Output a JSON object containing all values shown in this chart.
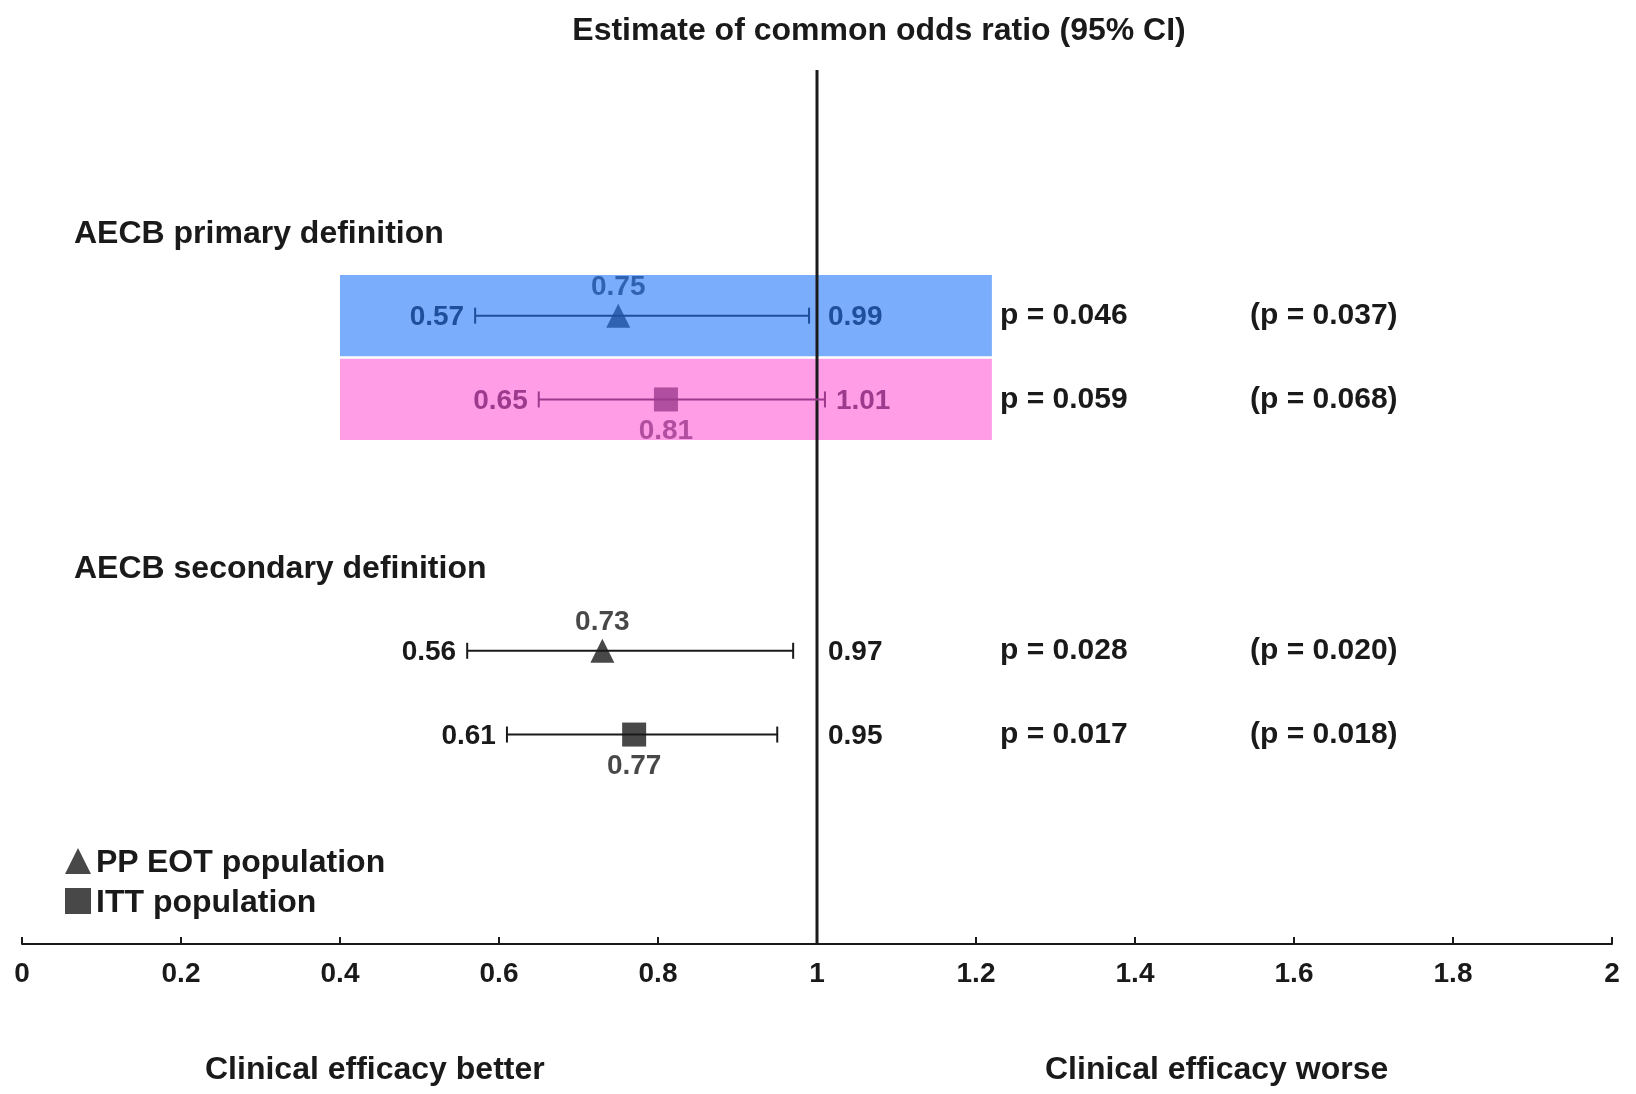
{
  "chart_data": {
    "type": "scatter",
    "orientation": "horizontal",
    "title": "Estimate of common odds ratio (95% CI)",
    "categories": [
      "AECB primary definition",
      null,
      null,
      null,
      "AECB secondary definition",
      null,
      null,
      null,
      null
    ],
    "series": [
      {
        "name": "PP EOT population",
        "marker": "triangle",
        "color": "#1a1a1a",
        "colors": [
          null,
          "#1d4f9c",
          null,
          null,
          null,
          "#1a1a1a",
          null,
          null,
          null
        ],
        "values": [
          null,
          0.75,
          null,
          null,
          null,
          0.73,
          null,
          null,
          null
        ],
        "errors": [
          null,
          [
            0.57,
            0.99
          ],
          null,
          null,
          null,
          [
            0.56,
            0.97
          ],
          null,
          null,
          null
        ]
      },
      {
        "name": "ITT population",
        "marker": "square",
        "color": "#1a1a1a",
        "colors": [
          null,
          null,
          "#9c3b8d",
          null,
          null,
          null,
          "#1a1a1a",
          null,
          null
        ],
        "values": [
          null,
          null,
          0.81,
          null,
          null,
          null,
          0.77,
          null,
          null
        ],
        "errors": [
          null,
          null,
          [
            0.65,
            1.01
          ],
          null,
          null,
          null,
          [
            0.61,
            0.95
          ],
          null,
          null
        ]
      }
    ],
    "data_labels": true,
    "xlim": [
      0,
      2
    ],
    "xticks": [
      0,
      0.2,
      0.4,
      0.6,
      0.8,
      1,
      1.2,
      1.4,
      1.6,
      1.8,
      2
    ],
    "ref_lines": [
      {
        "axis": "x",
        "value": 1,
        "color": "#1a1a1a",
        "line_style": "solid"
      }
    ],
    "bands": [
      {
        "axis": "x",
        "from": 0.4,
        "to": 1.22,
        "color": "#7aaefc"
      },
      {
        "axis": "x",
        "from": 0.4,
        "to": 1.22,
        "color": "#ff9de6"
      }
    ],
    "annotations": [
      {
        "text": "0.57",
        "x": 0.57
      },
      {
        "text": "0.99",
        "x": 0.99
      },
      {
        "text": "0.65",
        "x": 0.65
      },
      {
        "text": "1.01",
        "x": 1.01
      },
      {
        "text": "0.56",
        "x": 0.56
      },
      {
        "text": "0.97",
        "x": 0.97
      },
      {
        "text": "0.61",
        "x": 0.61
      },
      {
        "text": "0.95",
        "x": 0.95
      },
      "p = 0.046",
      "(p = 0.037)",
      "p = 0.059",
      "(p = 0.068)",
      "p = 0.028",
      "(p = 0.020)",
      "p = 0.017",
      "(p = 0.018)",
      "Clinical efficacy better",
      "Clinical efficacy worse"
    ],
    "legend": "bottom left",
    "grid": false
  }
}
